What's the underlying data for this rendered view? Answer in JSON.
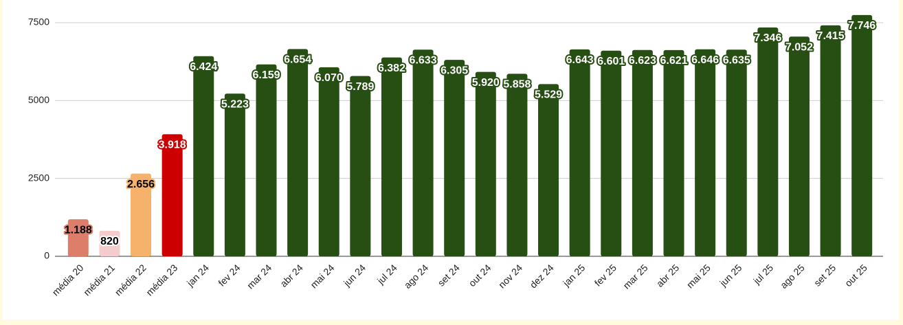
{
  "chart_data": {
    "type": "bar",
    "categories": [
      "média 20",
      "média 21",
      "média 22",
      "média 23",
      "jan 24",
      "fev 24",
      "mar 24",
      "abr 24",
      "mai 24",
      "jun 24",
      "jul 24",
      "ago 24",
      "set 24",
      "out 24",
      "nov 24",
      "dez 24",
      "jan 25",
      "fev 25",
      "mar 25",
      "abr 25",
      "mai 25",
      "jun 25",
      "jul 25",
      "ago 25",
      "set 25",
      "out 25"
    ],
    "values": [
      1188,
      820,
      2656,
      3918,
      6424,
      5223,
      6159,
      6654,
      6070,
      5789,
      6382,
      6633,
      6305,
      5920,
      5858,
      5529,
      6643,
      6601,
      6623,
      6621,
      6646,
      6635,
      7346,
      7052,
      7415,
      7746
    ],
    "value_labels": [
      "1.188",
      "820",
      "2.656",
      "3.918",
      "6.424",
      "5.223",
      "6.159",
      "6.654",
      "6.070",
      "5.789",
      "6.382",
      "6.633",
      "6.305",
      "5.920",
      "5.858",
      "5.529",
      "6.643",
      "6.601",
      "6.623",
      "6.621",
      "6.646",
      "6.635",
      "7.346",
      "7.052",
      "7.415",
      "7.746"
    ],
    "colors": [
      "#dd7e6b",
      "#f4cccc",
      "#f6b26b",
      "#cc0000",
      "#274e13",
      "#274e13",
      "#274e13",
      "#274e13",
      "#274e13",
      "#274e13",
      "#274e13",
      "#274e13",
      "#274e13",
      "#274e13",
      "#274e13",
      "#274e13",
      "#274e13",
      "#274e13",
      "#274e13",
      "#274e13",
      "#274e13",
      "#274e13",
      "#274e13",
      "#274e13",
      "#274e13",
      "#274e13"
    ],
    "ylim": [
      0,
      7500
    ],
    "yticks": [
      0,
      2500,
      5000,
      7500
    ],
    "grid": true
  }
}
